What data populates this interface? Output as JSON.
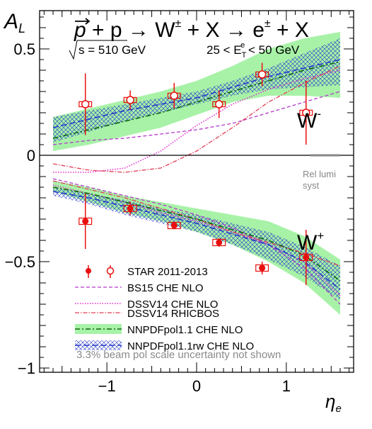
{
  "chart_data": {
    "type": "scatter",
    "title": "p⃗ + p → W± + X → e± + X",
    "title_parts": {
      "p1": "p",
      "op1": " + p → W",
      "pm1": "±",
      "op2": " + X → e",
      "pm2": "±",
      "op3": " + X"
    },
    "energy_label": "s = 510 GeV",
    "cut_label": {
      "lo": "25 < E",
      "sub": "T",
      "sup": "e",
      "hi": " < 50 GeV"
    },
    "ylabel": "A",
    "ylabel_sub": "L",
    "xlabel": "η",
    "xlabel_sub": "e",
    "xlim": [
      -1.75,
      1.75
    ],
    "ylim": [
      -1.02,
      0.68
    ],
    "x_ticks": [
      {
        "v": -1,
        "label": "−1"
      },
      {
        "v": 0,
        "label": "0"
      },
      {
        "v": 1,
        "label": "1"
      }
    ],
    "y_ticks": [
      {
        "v": -1,
        "label": "−1"
      },
      {
        "v": -0.5,
        "label": "−0.5"
      },
      {
        "v": 0,
        "label": "0"
      },
      {
        "v": 0.5,
        "label": "0.5"
      }
    ],
    "grid": false,
    "legend_position": "bottom-left",
    "panel_labels": {
      "wminus": "W",
      "wminus_sup": "-",
      "wplus": "W",
      "wplus_sup": "+"
    },
    "rel_lumi": {
      "line1": "Rel lumi",
      "line2": "syst",
      "x_range": [
        1.27,
        1.6
      ],
      "y": 0
    },
    "legend": [
      {
        "label": "STAR 2011-2013",
        "style": "markers"
      },
      {
        "label": "BS15 CHE NLO",
        "style": "line",
        "color": "#b23ac9",
        "dash": "5,3"
      },
      {
        "label": "DSSV14 CHE NLO",
        "style": "line",
        "color": "#e12ad0",
        "dash": "1.5,2"
      },
      {
        "label": "DSSV14 RHICBOS",
        "style": "line",
        "color": "#e03c53",
        "dash": "6,2,1.5,2"
      },
      {
        "label": "NNPDFpol1.1 CHE NLO",
        "style": "band",
        "color": "#0b6a0b",
        "fill": "#a8f2a8",
        "dash": "7,3,2,3"
      },
      {
        "label": "NNPDFpol1.1rw CHE NLO",
        "style": "hatch",
        "color": "#2236c9",
        "dash": "8,4"
      }
    ],
    "note": "3.3% beam pol scale uncertainty not shown",
    "colors": {
      "star": "#e8100f",
      "bs15": "#b23ac9",
      "dssv": "#e12ad0",
      "rhicbos": "#e03c53",
      "nnpdf_band": "#a8f2a8",
      "nnpdf_line": "#0b6a0b",
      "rw": "#2236c9",
      "note": "#8a8a8a",
      "lumi": "#888888"
    },
    "series": [
      {
        "name": "W- STAR",
        "open": true,
        "points": [
          {
            "x": -1.24,
            "y": 0.24,
            "ystat": 0.145,
            "xsys": 0.07,
            "ysys": 0.012
          },
          {
            "x": -0.74,
            "y": 0.26,
            "ystat": 0.045,
            "xsys": 0.07,
            "ysys": 0.012
          },
          {
            "x": -0.25,
            "y": 0.28,
            "ystat": 0.06,
            "xsys": 0.07,
            "ysys": 0.012
          },
          {
            "x": 0.25,
            "y": 0.24,
            "ystat": 0.065,
            "xsys": 0.07,
            "ysys": 0.012
          },
          {
            "x": 0.73,
            "y": 0.38,
            "ystat": 0.055,
            "xsys": 0.07,
            "ysys": 0.012
          },
          {
            "x": 1.22,
            "y": 0.2,
            "ystat": 0.15,
            "xsys": 0.07,
            "ysys": 0.012
          }
        ]
      },
      {
        "name": "W+ STAR",
        "open": false,
        "points": [
          {
            "x": -1.24,
            "y": -0.31,
            "ystat": 0.13,
            "xsys": 0.07,
            "ysys": 0.015
          },
          {
            "x": -0.74,
            "y": -0.25,
            "ystat": 0.032,
            "xsys": 0.07,
            "ysys": 0.015
          },
          {
            "x": -0.25,
            "y": -0.33,
            "ystat": 0.018,
            "xsys": 0.07,
            "ysys": 0.015
          },
          {
            "x": 0.25,
            "y": -0.41,
            "ystat": 0.02,
            "xsys": 0.07,
            "ysys": 0.015
          },
          {
            "x": 0.73,
            "y": -0.53,
            "ystat": 0.03,
            "xsys": 0.07,
            "ysys": 0.015
          },
          {
            "x": 1.22,
            "y": -0.48,
            "ystat": 0.13,
            "xsys": 0.07,
            "ysys": 0.015
          }
        ]
      }
    ],
    "bands": {
      "wminus_nnpdf": {
        "x": [
          -1.6,
          -1.2,
          -0.8,
          -0.4,
          0,
          0.4,
          0.8,
          1.2,
          1.6
        ],
        "lo": [
          0.02,
          0.05,
          0.09,
          0.13,
          0.19,
          0.25,
          0.28,
          0.28,
          0.27
        ],
        "hi": [
          0.18,
          0.22,
          0.26,
          0.3,
          0.35,
          0.42,
          0.5,
          0.55,
          0.58
        ]
      },
      "wminus_rw": {
        "x": [
          -1.6,
          -1.2,
          -0.8,
          -0.4,
          0,
          0.4,
          0.8,
          1.2,
          1.6
        ],
        "lo": [
          0.06,
          0.11,
          0.16,
          0.2,
          0.24,
          0.28,
          0.31,
          0.32,
          0.33
        ],
        "hi": [
          0.18,
          0.21,
          0.24,
          0.27,
          0.3,
          0.35,
          0.41,
          0.48,
          0.55
        ]
      },
      "wplus_nnpdf": {
        "x": [
          -1.6,
          -1.2,
          -0.8,
          -0.4,
          0,
          0.4,
          0.8,
          1.2,
          1.6
        ],
        "lo": [
          -0.17,
          -0.22,
          -0.27,
          -0.31,
          -0.36,
          -0.42,
          -0.5,
          -0.6,
          -0.75
        ],
        "hi": [
          -0.12,
          -0.15,
          -0.19,
          -0.22,
          -0.25,
          -0.28,
          -0.31,
          -0.38,
          -0.49
        ]
      },
      "wplus_rw": {
        "x": [
          -1.6,
          -1.2,
          -0.8,
          -0.4,
          0,
          0.4,
          0.8,
          1.2,
          1.6
        ],
        "lo": [
          -0.19,
          -0.23,
          -0.28,
          -0.32,
          -0.36,
          -0.42,
          -0.49,
          -0.57,
          -0.68
        ],
        "hi": [
          -0.15,
          -0.18,
          -0.21,
          -0.25,
          -0.28,
          -0.32,
          -0.36,
          -0.43,
          -0.52
        ]
      }
    },
    "curves": {
      "wminus_bs15": {
        "x": [
          -1.6,
          -1.2,
          -0.8,
          -0.4,
          0,
          0.4,
          0.8,
          1.2,
          1.6
        ],
        "y": [
          0.05,
          0.07,
          0.08,
          0.1,
          0.12,
          0.15,
          0.2,
          0.25,
          0.3
        ]
      },
      "wminus_dssv": {
        "x": [
          -1.6,
          -1.2,
          -0.8,
          -0.4,
          0,
          0.4,
          0.8,
          1.2,
          1.6
        ],
        "y": [
          -0.08,
          -0.08,
          -0.06,
          0.02,
          0.14,
          0.24,
          0.31,
          0.36,
          0.4
        ]
      },
      "wminus_rhicbos": {
        "x": [
          -1.6,
          -1.2,
          -0.8,
          -0.4,
          0,
          0.4,
          0.8,
          1.2,
          1.6
        ],
        "y": [
          -0.04,
          -0.07,
          -0.08,
          -0.06,
          0.02,
          0.13,
          0.25,
          0.34,
          0.42
        ]
      },
      "wminus_nnpdf": {
        "x": [
          -1.6,
          -1.2,
          -0.8,
          -0.4,
          0,
          0.4,
          0.8,
          1.2,
          1.6
        ],
        "y": [
          0.08,
          0.12,
          0.16,
          0.2,
          0.25,
          0.3,
          0.35,
          0.4,
          0.44
        ]
      },
      "wminus_rw": {
        "x": [
          -1.6,
          -1.2,
          -0.8,
          -0.4,
          0,
          0.4,
          0.8,
          1.2,
          1.6
        ],
        "y": [
          0.13,
          0.17,
          0.21,
          0.24,
          0.27,
          0.32,
          0.37,
          0.41,
          0.45
        ]
      },
      "wplus_bs15": {
        "x": [
          -1.6,
          -1.2,
          -0.8,
          -0.4,
          0,
          0.4,
          0.8,
          1.2,
          1.6
        ],
        "y": [
          -0.11,
          -0.15,
          -0.19,
          -0.23,
          -0.28,
          -0.34,
          -0.42,
          -0.53,
          -0.7
        ]
      },
      "wplus_dssv": {
        "x": [
          -1.6,
          -1.2,
          -0.8,
          -0.4,
          0,
          0.4,
          0.8,
          1.2,
          1.6
        ],
        "y": [
          -0.14,
          -0.18,
          -0.22,
          -0.27,
          -0.31,
          -0.36,
          -0.42,
          -0.5,
          -0.66
        ]
      },
      "wplus_rhicbos": {
        "x": [
          -1.6,
          -1.2,
          -0.8,
          -0.4,
          0,
          0.4,
          0.8,
          1.2,
          1.6
        ],
        "y": [
          -0.12,
          -0.16,
          -0.2,
          -0.25,
          -0.3,
          -0.36,
          -0.41,
          -0.46,
          -0.52
        ]
      },
      "wplus_nnpdf": {
        "x": [
          -1.6,
          -1.2,
          -0.8,
          -0.4,
          0,
          0.4,
          0.8,
          1.2,
          1.6
        ],
        "y": [
          -0.15,
          -0.18,
          -0.22,
          -0.26,
          -0.3,
          -0.35,
          -0.4,
          -0.47,
          -0.59
        ]
      },
      "wplus_rw": {
        "x": [
          -1.6,
          -1.2,
          -0.8,
          -0.4,
          0,
          0.4,
          0.8,
          1.2,
          1.6
        ],
        "y": [
          -0.17,
          -0.2,
          -0.24,
          -0.28,
          -0.32,
          -0.37,
          -0.42,
          -0.5,
          -0.63
        ]
      }
    }
  }
}
